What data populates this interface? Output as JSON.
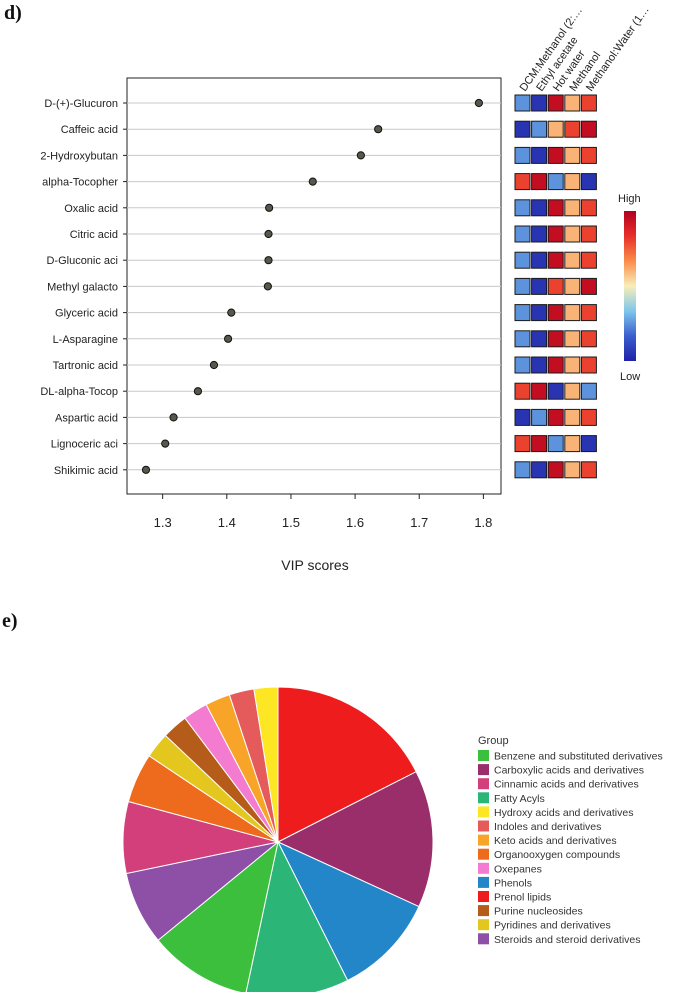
{
  "panels": {
    "d_label": "d)",
    "e_label": "e)"
  },
  "chart_data": [
    {
      "type": "scatter",
      "title": "",
      "xlabel": "VIP scores",
      "ylabel": "",
      "xlim": [
        1.26,
        1.815
      ],
      "xticks": [
        1.3,
        1.4,
        1.5,
        1.6,
        1.7,
        1.8
      ],
      "points": [
        {
          "label": "D-(+)-Glucuron",
          "value": 1.793
        },
        {
          "label": "Caffeic acid",
          "value": 1.636
        },
        {
          "label": "2-Hydroxybutan",
          "value": 1.609
        },
        {
          "label": "alpha-Tocopher",
          "value": 1.534
        },
        {
          "label": "Oxalic acid",
          "value": 1.466
        },
        {
          "label": "Citric acid",
          "value": 1.465
        },
        {
          "label": "D-Gluconic aci",
          "value": 1.465
        },
        {
          "label": "Methyl galacto",
          "value": 1.464
        },
        {
          "label": "Glyceric acid",
          "value": 1.407
        },
        {
          "label": "L-Asparagine",
          "value": 1.402
        },
        {
          "label": "Tartronic acid",
          "value": 1.38
        },
        {
          "label": "DL-alpha-Tocop",
          "value": 1.355
        },
        {
          "label": "Aspartic acid",
          "value": 1.317
        },
        {
          "label": "Lignoceric aci",
          "value": 1.304
        },
        {
          "label": "Shikimic acid",
          "value": 1.274
        }
      ],
      "heatmap": {
        "columns": [
          "DCM:Methanol (2:…",
          "Ethyl acetate",
          "Hot water",
          "Methanol",
          "Methanol:Water (1…"
        ],
        "legend_high": "High",
        "legend_low": "Low",
        "color_stops": [
          "#2121a8",
          "#3a5fcd",
          "#7fc6ec",
          "#f8eeb8",
          "#fb8c4a",
          "#e7302a",
          "#b3001f"
        ],
        "levels": [
          [
            0.25,
            0.05,
            0.95,
            0.6,
            0.8
          ],
          [
            0.05,
            0.25,
            0.6,
            0.8,
            0.95
          ],
          [
            0.25,
            0.05,
            0.95,
            0.6,
            0.8
          ],
          [
            0.8,
            0.95,
            0.25,
            0.6,
            0.05
          ],
          [
            0.25,
            0.05,
            0.95,
            0.6,
            0.8
          ],
          [
            0.25,
            0.05,
            0.95,
            0.6,
            0.8
          ],
          [
            0.25,
            0.05,
            0.95,
            0.6,
            0.8
          ],
          [
            0.25,
            0.05,
            0.8,
            0.6,
            0.95
          ],
          [
            0.25,
            0.05,
            0.95,
            0.6,
            0.8
          ],
          [
            0.25,
            0.05,
            0.95,
            0.6,
            0.8
          ],
          [
            0.25,
            0.05,
            0.95,
            0.6,
            0.8
          ],
          [
            0.8,
            0.95,
            0.05,
            0.6,
            0.25
          ],
          [
            0.05,
            0.25,
            0.95,
            0.6,
            0.8
          ],
          [
            0.8,
            0.95,
            0.25,
            0.6,
            0.05
          ],
          [
            0.25,
            0.05,
            0.95,
            0.6,
            0.8
          ]
        ]
      }
    },
    {
      "type": "pie",
      "title": "",
      "legend_title": "Group",
      "legend_position": "right",
      "slices": [
        {
          "name": "Prenol lipids",
          "value": 17.6,
          "color": "#ee1c1c"
        },
        {
          "name": "Carboxylic acids and derivatives",
          "value": 14.4,
          "color": "#9a2e6b"
        },
        {
          "name": "Phenols",
          "value": 10.8,
          "color": "#2386c8"
        },
        {
          "name": "Fatty Acyls",
          "value": 10.8,
          "color": "#2bb577"
        },
        {
          "name": "Benzene and substituted derivatives",
          "value": 10.8,
          "color": "#3cbf3c"
        },
        {
          "name": "Steroids and steroid derivatives",
          "value": 7.7,
          "color": "#8e4fa7"
        },
        {
          "name": "Cinnamic acids and derivatives",
          "value": 7.5,
          "color": "#d23f7b"
        },
        {
          "name": "Organooxygen compounds",
          "value": 5.2,
          "color": "#ee6a1c"
        },
        {
          "name": "Pyridines and derivatives",
          "value": 2.7,
          "color": "#e3c71f"
        },
        {
          "name": "Purine nucleosides",
          "value": 2.7,
          "color": "#b65c1b"
        },
        {
          "name": "Oxepanes",
          "value": 2.6,
          "color": "#f37bd0"
        },
        {
          "name": "Keto acids and derivatives",
          "value": 2.6,
          "color": "#f7a428"
        },
        {
          "name": "Indoles and derivatives",
          "value": 2.6,
          "color": "#e55b5b"
        },
        {
          "name": "Hydroxy acids and derivatives",
          "value": 2.5,
          "color": "#fde725"
        }
      ],
      "legend_items": [
        {
          "name": "Benzene and substituted derivatives",
          "color": "#3cbf3c"
        },
        {
          "name": "Carboxylic acids and derivatives",
          "color": "#9a2e6b"
        },
        {
          "name": "Cinnamic acids and derivatives",
          "color": "#d23f7b"
        },
        {
          "name": "Fatty Acyls",
          "color": "#2bb577"
        },
        {
          "name": "Hydroxy acids and derivatives",
          "color": "#fde725"
        },
        {
          "name": "Indoles and derivatives",
          "color": "#e55b5b"
        },
        {
          "name": "Keto acids and derivatives",
          "color": "#f7a428"
        },
        {
          "name": "Organooxygen compounds",
          "color": "#ee6a1c"
        },
        {
          "name": "Oxepanes",
          "color": "#f37bd0"
        },
        {
          "name": "Phenols",
          "color": "#2386c8"
        },
        {
          "name": "Prenol lipids",
          "color": "#ee1c1c"
        },
        {
          "name": "Purine nucleosides",
          "color": "#b65c1b"
        },
        {
          "name": "Pyridines and derivatives",
          "color": "#e3c71f"
        },
        {
          "name": "Steroids and steroid derivatives",
          "color": "#8e4fa7"
        }
      ]
    }
  ]
}
